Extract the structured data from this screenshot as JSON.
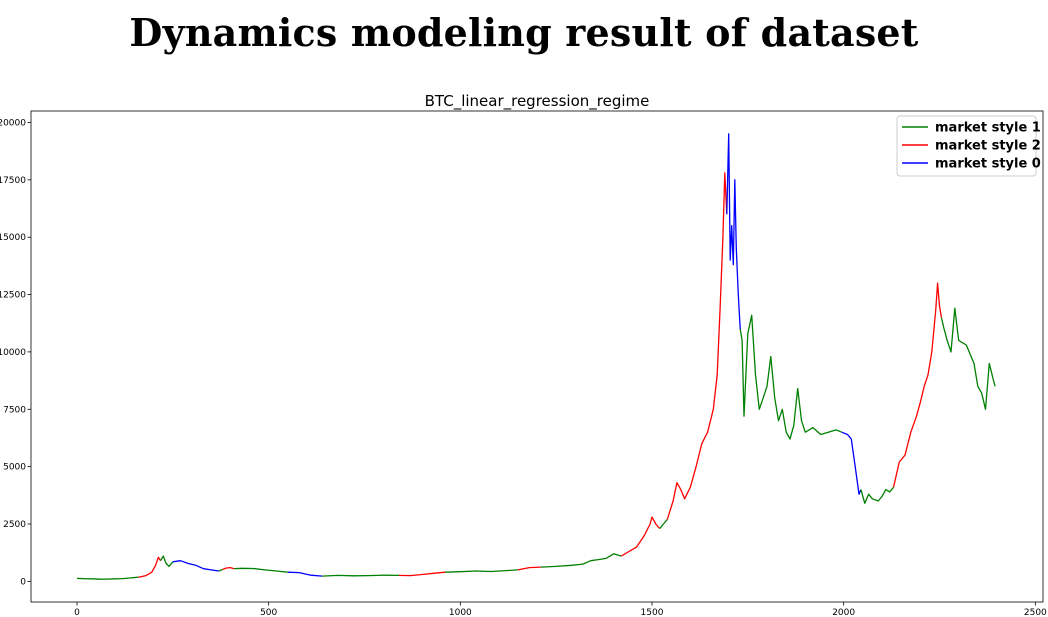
{
  "page_title": "Dynamics modeling result of dataset",
  "chart_data": {
    "type": "line",
    "title": "BTC_linear_regression_regime",
    "xlabel": "",
    "ylabel": "",
    "xlim": [
      -120,
      2520
    ],
    "ylim": [
      -900,
      20500
    ],
    "x_ticks": [
      0,
      500,
      1000,
      1500,
      2000,
      2500
    ],
    "y_ticks": [
      0,
      2500,
      5000,
      7500,
      10000,
      12500,
      15000,
      17500,
      20000
    ],
    "grid": false,
    "legend_position": "top-right",
    "legend": [
      {
        "label": "market style 1",
        "color": "#008000"
      },
      {
        "label": "market style 2",
        "color": "#ff0000"
      },
      {
        "label": "market style 0",
        "color": "#0000ff"
      }
    ],
    "segments": [
      {
        "style": "market style 1",
        "color": "#008000",
        "points": [
          [
            0,
            130
          ],
          [
            20,
            115
          ],
          [
            40,
            110
          ],
          [
            60,
            95
          ],
          [
            80,
            100
          ],
          [
            100,
            110
          ],
          [
            120,
            120
          ],
          [
            140,
            150
          ],
          [
            160,
            180
          ]
        ]
      },
      {
        "style": "market style 2",
        "color": "#ff0000",
        "points": [
          [
            160,
            180
          ],
          [
            180,
            250
          ],
          [
            195,
            400
          ],
          [
            205,
            700
          ],
          [
            212,
            1050
          ],
          [
            218,
            900
          ]
        ]
      },
      {
        "style": "market style 1",
        "color": "#008000",
        "points": [
          [
            218,
            900
          ],
          [
            225,
            1100
          ],
          [
            232,
            800
          ],
          [
            240,
            650
          ],
          [
            250,
            850
          ]
        ]
      },
      {
        "style": "market style 0",
        "color": "#0000ff",
        "points": [
          [
            250,
            850
          ],
          [
            270,
            900
          ],
          [
            290,
            780
          ],
          [
            310,
            700
          ],
          [
            330,
            550
          ],
          [
            350,
            500
          ],
          [
            370,
            450
          ]
        ]
      },
      {
        "style": "market style 1",
        "color": "#008000",
        "points": [
          [
            370,
            450
          ],
          [
            380,
            520
          ]
        ]
      },
      {
        "style": "market style 2",
        "color": "#ff0000",
        "points": [
          [
            380,
            520
          ],
          [
            390,
            580
          ],
          [
            400,
            600
          ],
          [
            410,
            550
          ]
        ]
      },
      {
        "style": "market style 1",
        "color": "#008000",
        "points": [
          [
            410,
            550
          ],
          [
            430,
            570
          ],
          [
            460,
            560
          ],
          [
            490,
            500
          ],
          [
            520,
            450
          ],
          [
            550,
            400
          ]
        ]
      },
      {
        "style": "market style 0",
        "color": "#0000ff",
        "points": [
          [
            550,
            400
          ],
          [
            580,
            380
          ],
          [
            610,
            270
          ],
          [
            640,
            230
          ]
        ]
      },
      {
        "style": "market style 1",
        "color": "#008000",
        "points": [
          [
            640,
            230
          ],
          [
            680,
            260
          ],
          [
            720,
            240
          ],
          [
            760,
            250
          ],
          [
            800,
            270
          ],
          [
            840,
            260
          ]
        ]
      },
      {
        "style": "market style 2",
        "color": "#ff0000",
        "points": [
          [
            840,
            260
          ],
          [
            870,
            250
          ],
          [
            900,
            300
          ],
          [
            930,
            350
          ],
          [
            960,
            400
          ]
        ]
      },
      {
        "style": "market style 1",
        "color": "#008000",
        "points": [
          [
            960,
            400
          ],
          [
            1000,
            420
          ],
          [
            1040,
            450
          ],
          [
            1080,
            430
          ],
          [
            1120,
            470
          ],
          [
            1150,
            500
          ]
        ]
      },
      {
        "style": "market style 2",
        "color": "#ff0000",
        "points": [
          [
            1150,
            500
          ],
          [
            1180,
            600
          ],
          [
            1210,
            620
          ]
        ]
      },
      {
        "style": "market style 1",
        "color": "#008000",
        "points": [
          [
            1210,
            620
          ],
          [
            1250,
            650
          ],
          [
            1290,
            700
          ],
          [
            1320,
            750
          ],
          [
            1340,
            900
          ],
          [
            1360,
            950
          ],
          [
            1380,
            1000
          ],
          [
            1400,
            1200
          ],
          [
            1420,
            1100
          ]
        ]
      },
      {
        "style": "market style 2",
        "color": "#ff0000",
        "points": [
          [
            1420,
            1100
          ],
          [
            1440,
            1300
          ],
          [
            1460,
            1500
          ],
          [
            1480,
            2000
          ],
          [
            1495,
            2500
          ],
          [
            1500,
            2800
          ],
          [
            1510,
            2500
          ],
          [
            1520,
            2300
          ]
        ]
      },
      {
        "style": "market style 1",
        "color": "#008000",
        "points": [
          [
            1520,
            2300
          ],
          [
            1530,
            2500
          ],
          [
            1540,
            2700
          ]
        ]
      },
      {
        "style": "market style 2",
        "color": "#ff0000",
        "points": [
          [
            1540,
            2700
          ],
          [
            1555,
            3500
          ],
          [
            1565,
            4300
          ],
          [
            1575,
            4000
          ],
          [
            1585,
            3600
          ],
          [
            1600,
            4100
          ],
          [
            1615,
            5000
          ],
          [
            1630,
            6000
          ],
          [
            1645,
            6500
          ],
          [
            1660,
            7500
          ],
          [
            1670,
            9000
          ],
          [
            1678,
            12000
          ],
          [
            1685,
            15000
          ],
          [
            1690,
            17800
          ],
          [
            1695,
            16000
          ]
        ]
      },
      {
        "style": "market style 0",
        "color": "#0000ff",
        "points": [
          [
            1695,
            16000
          ],
          [
            1700,
            19500
          ],
          [
            1704,
            14000
          ],
          [
            1708,
            15500
          ],
          [
            1712,
            13800
          ],
          [
            1716,
            17500
          ],
          [
            1720,
            14500
          ],
          [
            1725,
            12500
          ],
          [
            1730,
            11000
          ]
        ]
      },
      {
        "style": "market style 1",
        "color": "#008000",
        "points": [
          [
            1730,
            11000
          ],
          [
            1735,
            10500
          ],
          [
            1740,
            7200
          ],
          [
            1745,
            9000
          ],
          [
            1750,
            10800
          ],
          [
            1760,
            11600
          ],
          [
            1770,
            9000
          ],
          [
            1780,
            7500
          ],
          [
            1790,
            8000
          ],
          [
            1800,
            8500
          ],
          [
            1810,
            9800
          ],
          [
            1820,
            8000
          ],
          [
            1830,
            7000
          ],
          [
            1840,
            7500
          ],
          [
            1850,
            6500
          ],
          [
            1860,
            6200
          ],
          [
            1870,
            6800
          ],
          [
            1880,
            8400
          ],
          [
            1890,
            7000
          ],
          [
            1900,
            6500
          ],
          [
            1920,
            6700
          ],
          [
            1940,
            6400
          ],
          [
            1960,
            6500
          ],
          [
            1980,
            6600
          ],
          [
            1995,
            6500
          ]
        ]
      },
      {
        "style": "market style 0",
        "color": "#0000ff",
        "points": [
          [
            1995,
            6500
          ],
          [
            2010,
            6400
          ],
          [
            2020,
            6200
          ],
          [
            2030,
            5000
          ],
          [
            2040,
            3800
          ],
          [
            2045,
            4000
          ]
        ]
      },
      {
        "style": "market style 1",
        "color": "#008000",
        "points": [
          [
            2045,
            4000
          ],
          [
            2055,
            3400
          ],
          [
            2065,
            3800
          ],
          [
            2075,
            3600
          ],
          [
            2090,
            3500
          ],
          [
            2100,
            3700
          ],
          [
            2110,
            4000
          ],
          [
            2120,
            3900
          ],
          [
            2130,
            4100
          ]
        ]
      },
      {
        "style": "market style 2",
        "color": "#ff0000",
        "points": [
          [
            2130,
            4100
          ],
          [
            2145,
            5200
          ],
          [
            2160,
            5500
          ],
          [
            2175,
            6500
          ],
          [
            2190,
            7200
          ],
          [
            2200,
            7800
          ],
          [
            2210,
            8500
          ],
          [
            2220,
            9000
          ],
          [
            2230,
            10000
          ],
          [
            2240,
            11800
          ],
          [
            2245,
            13000
          ],
          [
            2250,
            12000
          ],
          [
            2255,
            11500
          ]
        ]
      },
      {
        "style": "market style 1",
        "color": "#008000",
        "points": [
          [
            2255,
            11500
          ],
          [
            2262,
            11000
          ],
          [
            2270,
            10500
          ],
          [
            2280,
            10000
          ],
          [
            2290,
            11900
          ],
          [
            2300,
            10500
          ],
          [
            2320,
            10300
          ],
          [
            2340,
            9500
          ],
          [
            2350,
            8500
          ],
          [
            2360,
            8200
          ],
          [
            2370,
            7500
          ],
          [
            2380,
            9500
          ],
          [
            2390,
            8800
          ],
          [
            2395,
            8500
          ]
        ]
      }
    ]
  }
}
